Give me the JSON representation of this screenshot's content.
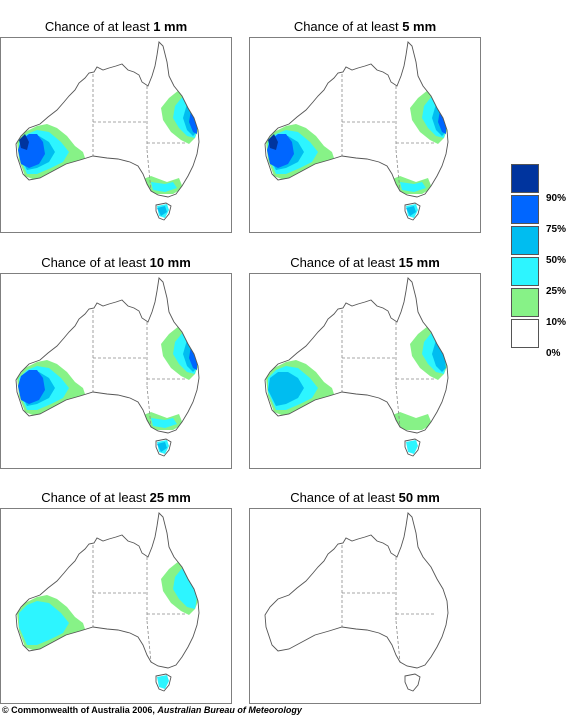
{
  "panels": [
    {
      "title_prefix": "Chance of at least ",
      "amount": "1 mm",
      "rain_level": 6
    },
    {
      "title_prefix": "Chance of at least ",
      "amount": "5 mm",
      "rain_level": 5
    },
    {
      "title_prefix": "Chance of at least ",
      "amount": "10 mm",
      "rain_level": 4
    },
    {
      "title_prefix": "Chance of at least ",
      "amount": "15 mm",
      "rain_level": 3
    },
    {
      "title_prefix": "Chance of at least ",
      "amount": "25 mm",
      "rain_level": 2
    },
    {
      "title_prefix": "Chance of at least ",
      "amount": "50 mm",
      "rain_level": 0
    }
  ],
  "legend": {
    "bands": [
      {
        "color": "#00349e"
      },
      {
        "color": "#0066ff"
      },
      {
        "color": "#00bdf0"
      },
      {
        "color": "#2df5ff"
      },
      {
        "color": "#87f287"
      },
      {
        "color": "#ffffff"
      }
    ],
    "labels": [
      "90%",
      "75%",
      "50%",
      "25%",
      "10%",
      "0%"
    ]
  },
  "footer": {
    "copyright": "© Commonwealth of Australia 2006, ",
    "agency": "Australian Bureau of Meteorology"
  }
}
